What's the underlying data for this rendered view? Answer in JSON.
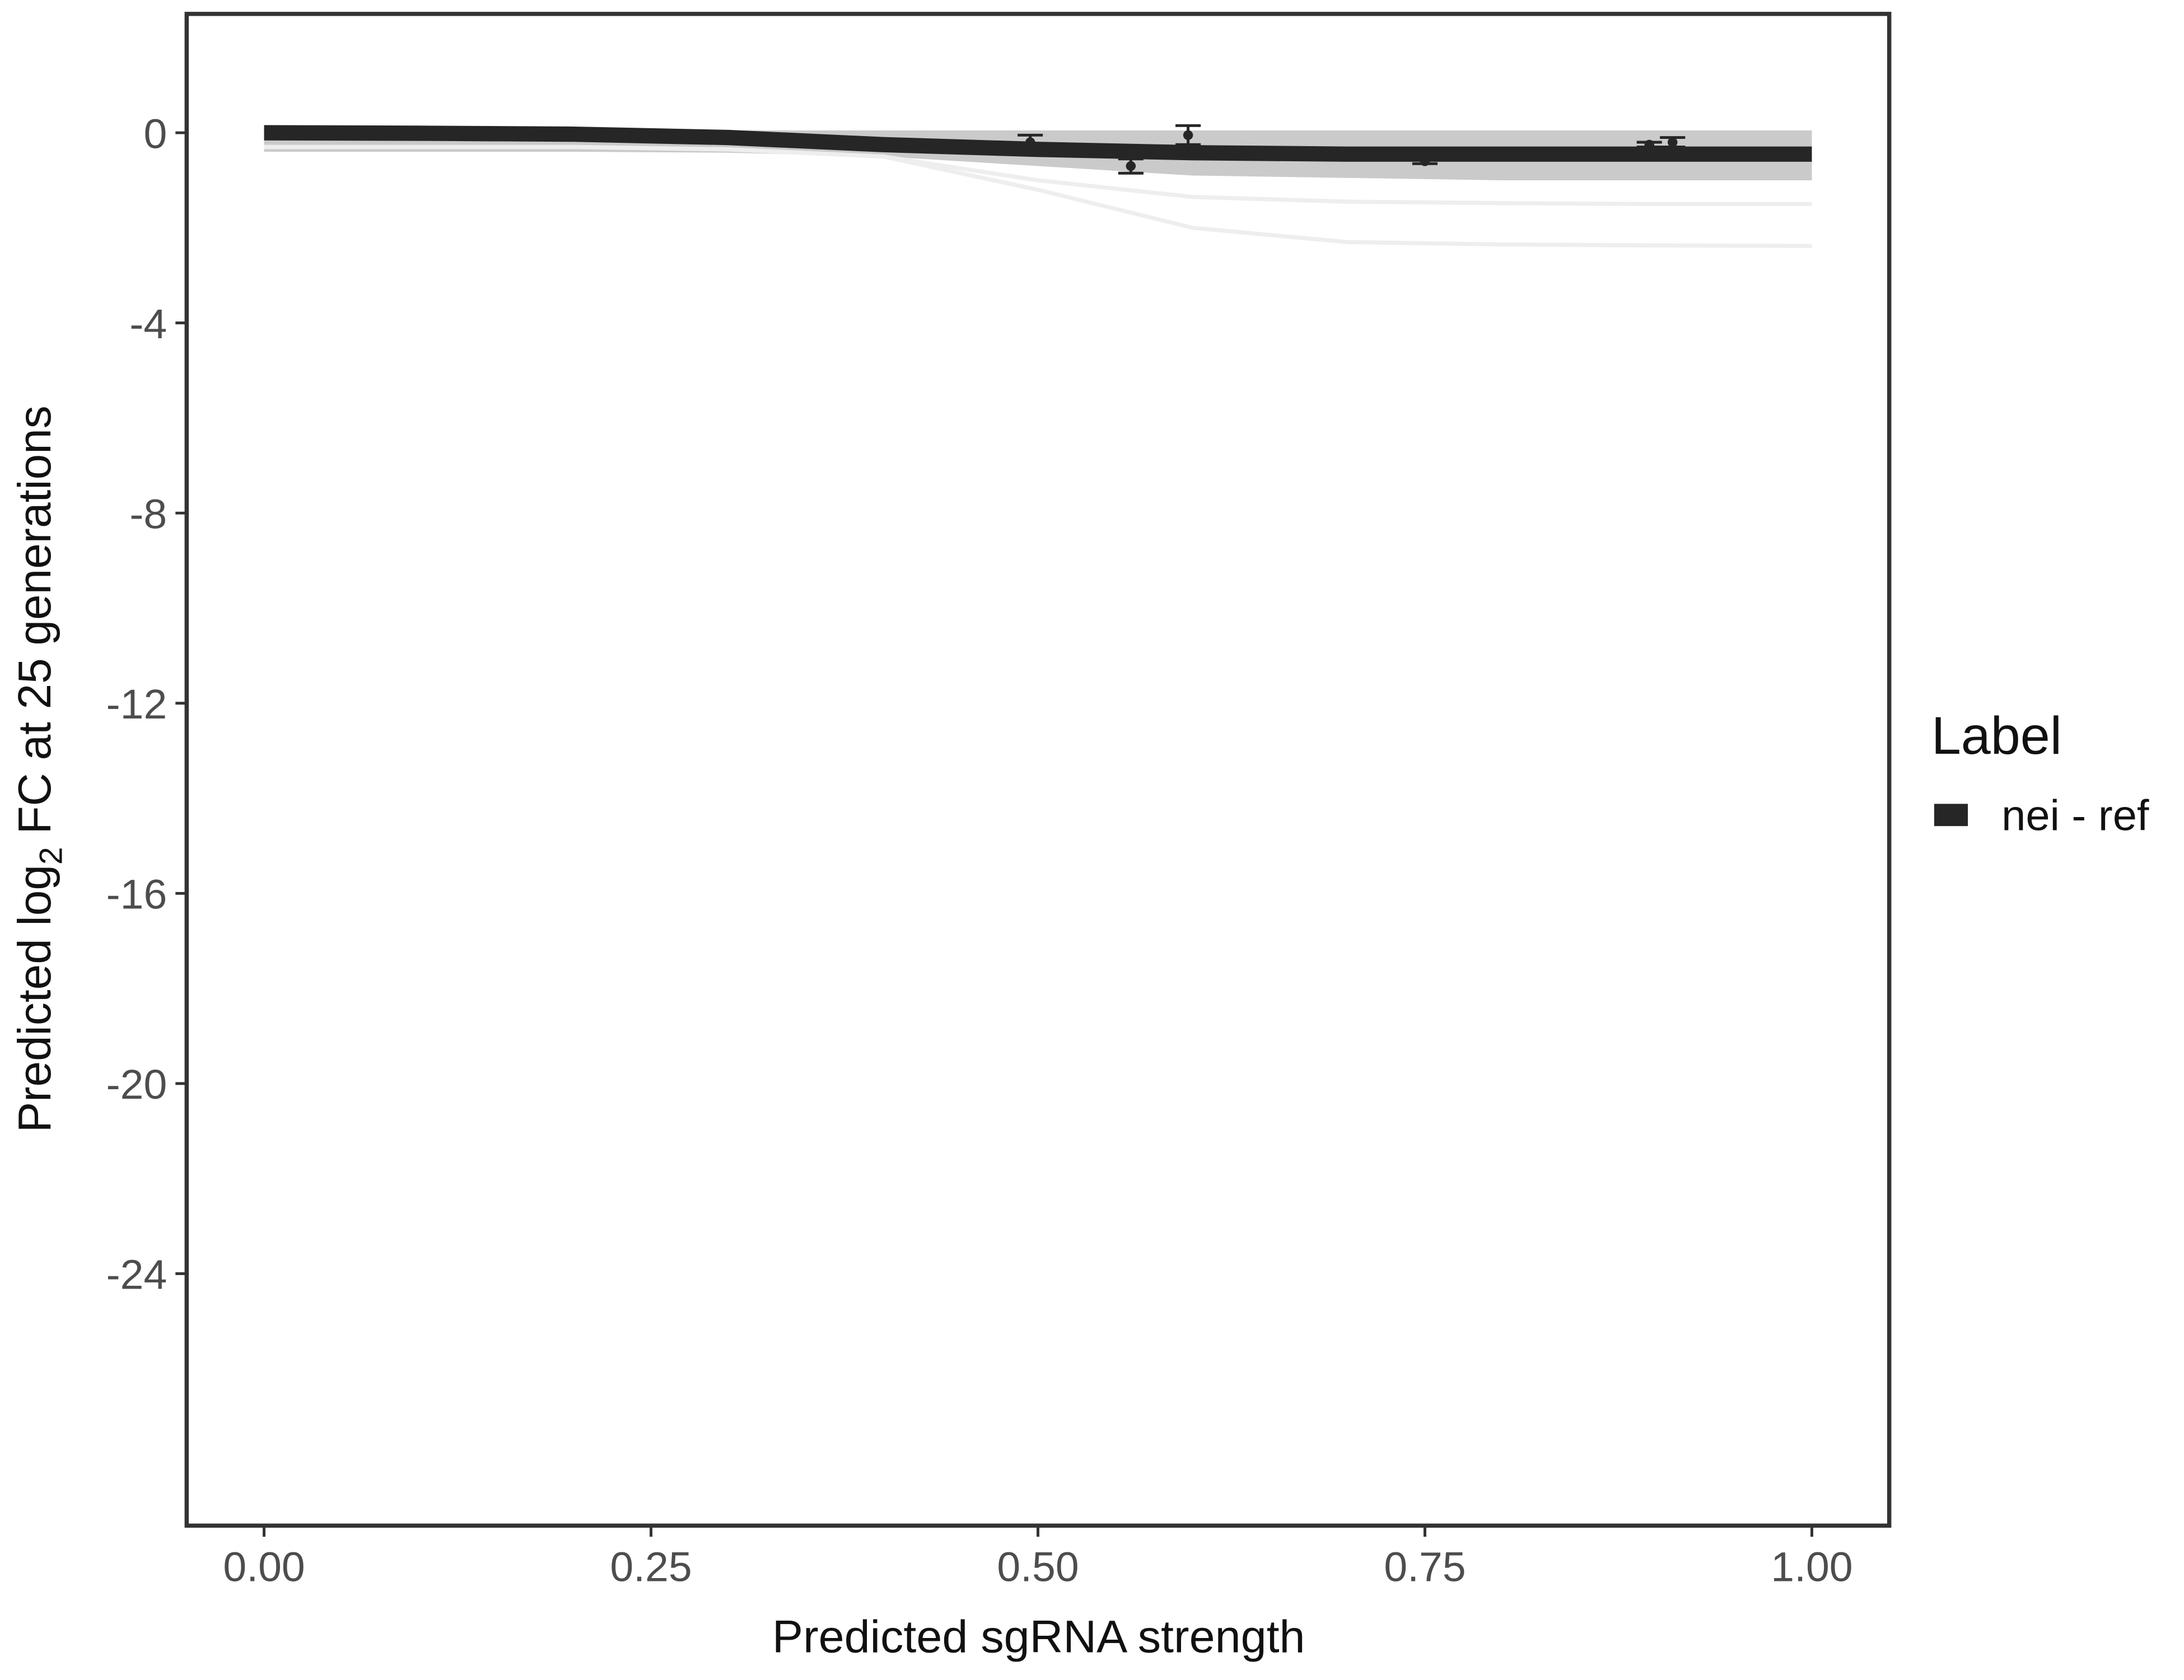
{
  "chart_data": {
    "type": "line",
    "x_label": "Predicted sgRNA strength",
    "y_label_parts": [
      "Predicted  log",
      "2",
      " FC at 25 generations"
    ],
    "legend_title": "Label",
    "legend_position": "right",
    "xlim": [
      -0.05,
      1.05
    ],
    "ylim": [
      -29.3,
      2.5
    ],
    "xticks": [
      {
        "value": 0,
        "label": "0.00"
      },
      {
        "value": 0.25,
        "label": "0.25"
      },
      {
        "value": 0.5,
        "label": "0.50"
      },
      {
        "value": 0.75,
        "label": "0.75"
      },
      {
        "value": 1,
        "label": "1.00"
      }
    ],
    "yticks": [
      0,
      -4,
      -8,
      -12,
      -16,
      -20,
      -24
    ],
    "grid": false,
    "band": {
      "color": "#9e9e9e",
      "x": [
        0,
        0.1,
        0.2,
        0.3,
        0.4,
        0.5,
        0.6,
        0.7,
        0.8,
        0.9,
        1.0
      ],
      "upper": [
        0.05,
        0.05,
        0.05,
        0.05,
        0.05,
        0.05,
        0.05,
        0.05,
        0.05,
        0.05,
        0.05
      ],
      "lower": [
        -0.4,
        -0.4,
        -0.4,
        -0.42,
        -0.5,
        -0.7,
        -0.9,
        -0.95,
        -1.0,
        -1.0,
        -1.0
      ]
    },
    "sample_lines": {
      "color": "#eeeeee",
      "x": [
        0,
        0.1,
        0.2,
        0.3,
        0.4,
        0.5,
        0.6,
        0.7,
        0.8,
        0.9,
        1.0
      ],
      "series": [
        [
          -0.3,
          -0.3,
          -0.3,
          -0.35,
          -0.5,
          -1.0,
          -1.35,
          -1.45,
          -1.48,
          -1.5,
          -1.5
        ],
        [
          -0.3,
          -0.3,
          -0.3,
          -0.35,
          -0.5,
          -1.2,
          -2.0,
          -2.3,
          -2.35,
          -2.37,
          -2.38
        ]
      ]
    },
    "series": [
      {
        "name": "nei - ref",
        "color": "#262626",
        "x": [
          0,
          0.1,
          0.2,
          0.3,
          0.4,
          0.5,
          0.6,
          0.7,
          0.8,
          0.9,
          1.0
        ],
        "values": [
          0,
          -0.01,
          -0.03,
          -0.1,
          -0.25,
          -0.35,
          -0.42,
          -0.45,
          -0.45,
          -0.45,
          -0.45
        ]
      }
    ],
    "points": {
      "color": "#262626",
      "x": [
        0.495,
        0.56,
        0.597,
        0.75,
        0.895,
        0.91
      ],
      "values": [
        -0.2,
        -0.7,
        -0.05,
        -0.6,
        -0.25,
        -0.2
      ],
      "errors": [
        0.15,
        0.15,
        0.2,
        0.05,
        0.05,
        0.1
      ]
    }
  }
}
